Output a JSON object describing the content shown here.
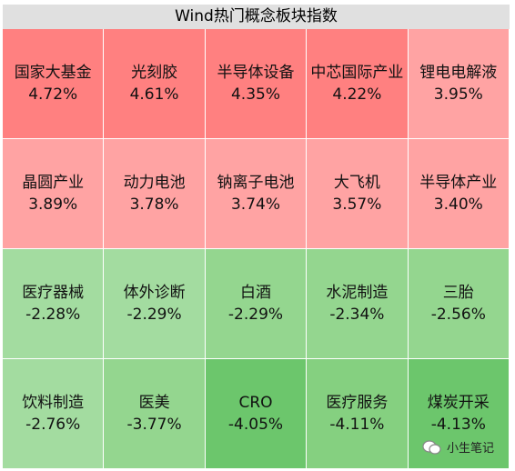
{
  "title": "Wind热门概念板块指数",
  "rows": [
    [
      {
        "name": "国家大基金",
        "value": "4.72%",
        "color": "#ff8080"
      },
      {
        "name": "光刻胶",
        "value": "4.61%",
        "color": "#ff8080"
      },
      {
        "name": "半导体设备",
        "value": "4.35%",
        "color": "#ff8080"
      },
      {
        "name": "中芯国际产业",
        "value": "4.22%",
        "color": "#ff8080"
      },
      {
        "name": "锂电电解液",
        "value": "3.95%",
        "color": "#ffa3a3"
      }
    ],
    [
      {
        "name": "晶圆产业",
        "value": "3.89%",
        "color": "#ffa3a3"
      },
      {
        "name": "动力电池",
        "value": "3.78%",
        "color": "#ffa3a3"
      },
      {
        "name": "钠离子电池",
        "value": "3.74%",
        "color": "#ffa3a3"
      },
      {
        "name": "大飞机",
        "value": "3.57%",
        "color": "#ffa3a3"
      },
      {
        "name": "半导体产业",
        "value": "3.40%",
        "color": "#ffa3a3"
      }
    ],
    [
      {
        "name": "医疗器械",
        "value": "-2.28%",
        "color": "#a3dca0"
      },
      {
        "name": "体外诊断",
        "value": "-2.29%",
        "color": "#a3dca0"
      },
      {
        "name": "白酒",
        "value": "-2.29%",
        "color": "#94d68f"
      },
      {
        "name": "水泥制造",
        "value": "-2.34%",
        "color": "#94d68f"
      },
      {
        "name": "三胎",
        "value": "-2.56%",
        "color": "#94d68f"
      }
    ],
    [
      {
        "name": "饮料制造",
        "value": "-2.76%",
        "color": "#a3dca0"
      },
      {
        "name": "医美",
        "value": "-3.77%",
        "color": "#94d68f"
      },
      {
        "name": "CRO",
        "value": "-4.05%",
        "color": "#6cc66c"
      },
      {
        "name": "医疗服务",
        "value": "-4.11%",
        "color": "#85d080"
      },
      {
        "name": "煤炭开采",
        "value": "-4.13%",
        "color": "#6cc66c"
      }
    ]
  ],
  "watermark": "小生笔记"
}
